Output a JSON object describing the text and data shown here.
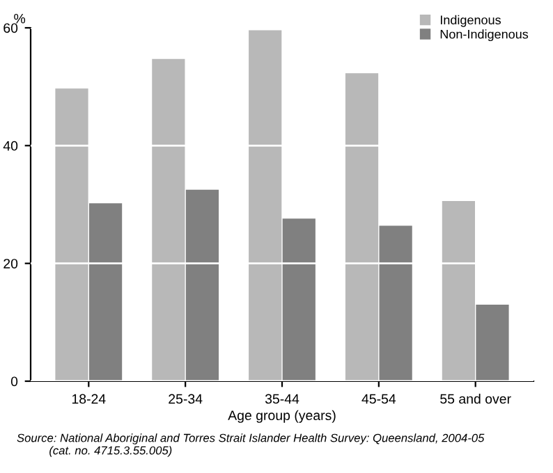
{
  "chart_data": {
    "type": "bar",
    "ylabel": "%",
    "xlabel": "Age group (years)",
    "categories": [
      "18-24",
      "25-34",
      "35-44",
      "45-54",
      "55 and over"
    ],
    "series": [
      {
        "name": "Indigenous",
        "color": "#b8b8b8",
        "values": [
          49.7,
          54.7,
          59.6,
          52.3,
          30.6
        ]
      },
      {
        "name": "Non-Indigenous",
        "color": "#808080",
        "values": [
          30.2,
          32.5,
          27.6,
          26.4,
          13.0
        ]
      }
    ],
    "ylim": [
      0,
      60
    ],
    "yticks": [
      0,
      20,
      40,
      60
    ],
    "grid": "y",
    "legend": "top right",
    "annotations": [
      "Source: National Aboriginal and Torres Strait Islander Health Survey: Queensland, 2004-05\n          (cat. no. 4715.3.55.005)"
    ]
  }
}
